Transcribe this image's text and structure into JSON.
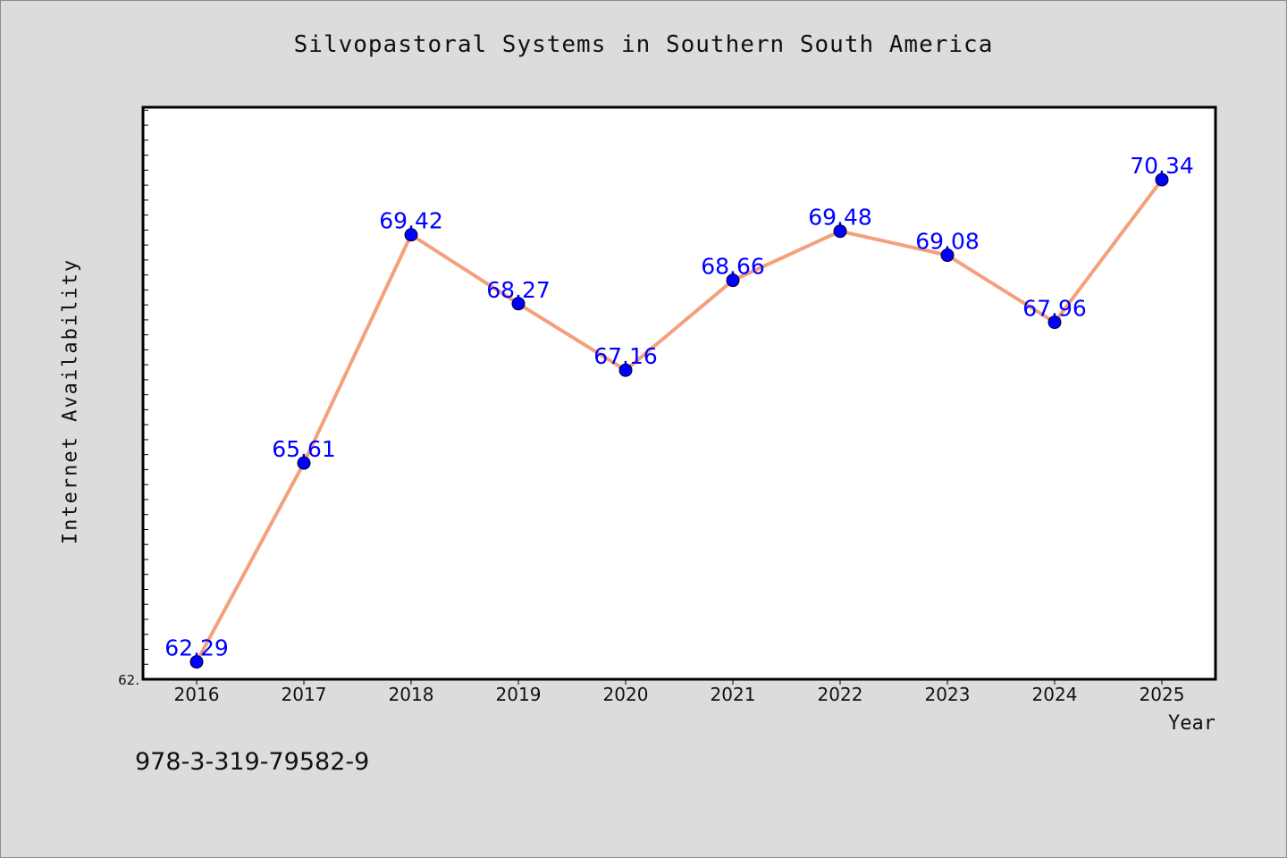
{
  "chart_data": {
    "type": "line",
    "title": "Silvopastoral Systems in Southern South America",
    "xlabel": "Year",
    "ylabel": "Internet Availability",
    "x": [
      "2016",
      "2017",
      "2018",
      "2019",
      "2020",
      "2021",
      "2022",
      "2023",
      "2024",
      "2025"
    ],
    "series": [
      {
        "values": [
          62.29,
          65.61,
          69.42,
          68.27,
          67.16,
          68.66,
          69.48,
          69.08,
          67.96,
          70.34
        ],
        "data_labels": [
          "62.29",
          "65.61",
          "69.42",
          "68.27",
          "67.16",
          "68.66",
          "69.48",
          "69.08",
          "67.96",
          "70.34"
        ],
        "line_color": "#f4a07c",
        "marker_color": "#0000ff"
      }
    ],
    "ylim": [
      62.0,
      71.55
    ],
    "y_min_label": "62.",
    "grid": false,
    "legend": "none"
  },
  "footer": {
    "code": "978-3-319-79582-9"
  }
}
